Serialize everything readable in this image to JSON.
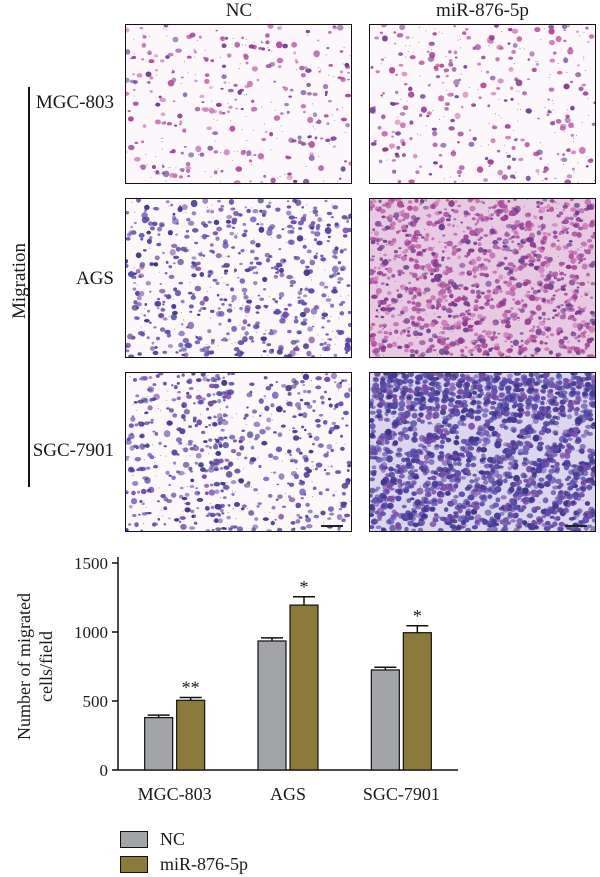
{
  "micrographs": {
    "columns": [
      "NC",
      "miR-876-5p"
    ],
    "rows": [
      "MGC-803",
      "AGS",
      "SGC-7901"
    ],
    "group_label": "Migration",
    "panels": [
      {
        "row": "MGC-803",
        "column": "NC",
        "style": "sparse",
        "tint": "pink-purple"
      },
      {
        "row": "MGC-803",
        "column": "miR-876-5p",
        "style": "sparse",
        "tint": "pink-purple"
      },
      {
        "row": "AGS",
        "column": "NC",
        "style": "medium",
        "tint": "blue-purple"
      },
      {
        "row": "AGS",
        "column": "miR-876-5p",
        "style": "dense",
        "tint": "pink-purple"
      },
      {
        "row": "SGC-7901",
        "column": "NC",
        "style": "medium",
        "tint": "blue-purple"
      },
      {
        "row": "SGC-7901",
        "column": "miR-876-5p",
        "style": "very-dense",
        "tint": "blue-purple"
      }
    ]
  },
  "chart_data": {
    "type": "bar",
    "categories": [
      "MGC-803",
      "AGS",
      "SGC-7901"
    ],
    "series": [
      {
        "name": "NC",
        "values": [
          380,
          935,
          725
        ],
        "errors": [
          18,
          22,
          20
        ],
        "color": "#a3a4a8"
      },
      {
        "name": "miR-876-5p",
        "values": [
          505,
          1195,
          995
        ],
        "errors": [
          20,
          60,
          50
        ],
        "color": "#8b7a3a"
      }
    ],
    "significance": [
      {
        "category": "MGC-803",
        "series": "miR-876-5p",
        "label": "**"
      },
      {
        "category": "AGS",
        "series": "miR-876-5p",
        "label": "*"
      },
      {
        "category": "SGC-7901",
        "series": "miR-876-5p",
        "label": "*"
      }
    ],
    "ylabel_line1": "Number of migrated",
    "ylabel_line2": "cells/field",
    "yticks": [
      0,
      500,
      1000,
      1500
    ],
    "ylim": [
      0,
      1500
    ],
    "legend_placement": "bottom-left"
  }
}
